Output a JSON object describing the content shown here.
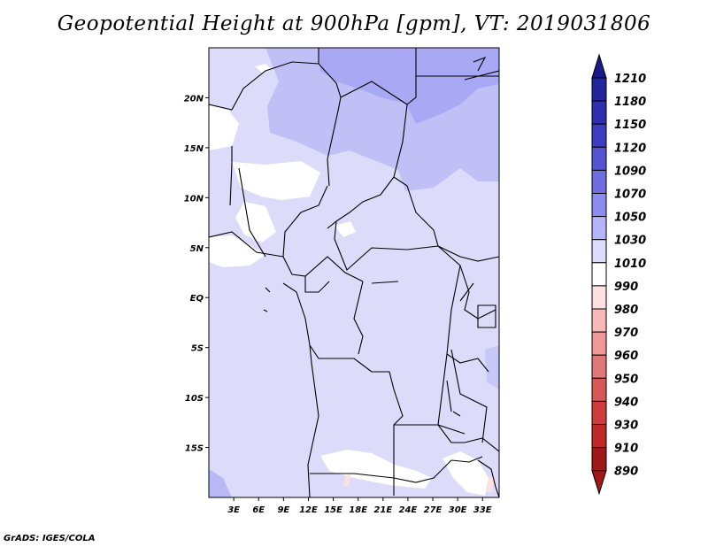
{
  "title": "Geopotential Height at 900hPa [gpm], VT: 2019031806",
  "credit": "GrADS: IGES/COLA",
  "map": {
    "lon_range": [
      0,
      35
    ],
    "lat_range": [
      -20,
      25
    ],
    "x_ticks": [
      "3E",
      "6E",
      "9E",
      "12E",
      "15E",
      "18E",
      "21E",
      "24E",
      "27E",
      "30E",
      "33E"
    ],
    "y_ticks": [
      "20N",
      "15N",
      "10N",
      "5N",
      "EQ",
      "5S",
      "10S",
      "15S"
    ],
    "background_fill": "#dcdcfa"
  },
  "colorbar": {
    "levels": [
      "1210",
      "1180",
      "1150",
      "1120",
      "1090",
      "1070",
      "1050",
      "1030",
      "1010",
      "990",
      "980",
      "970",
      "960",
      "950",
      "940",
      "930",
      "910",
      "890"
    ],
    "colors": [
      "#1a1a8c",
      "#24249e",
      "#2e2eb0",
      "#3c3cc2",
      "#5454d2",
      "#6e6ee0",
      "#8c8cf0",
      "#b4b4fa",
      "#dcdcfc",
      "#ffffff",
      "#fde0e0",
      "#f8b8b8",
      "#f09898",
      "#e07878",
      "#d85858",
      "#d03c3c",
      "#c02828",
      "#a01818"
    ]
  }
}
